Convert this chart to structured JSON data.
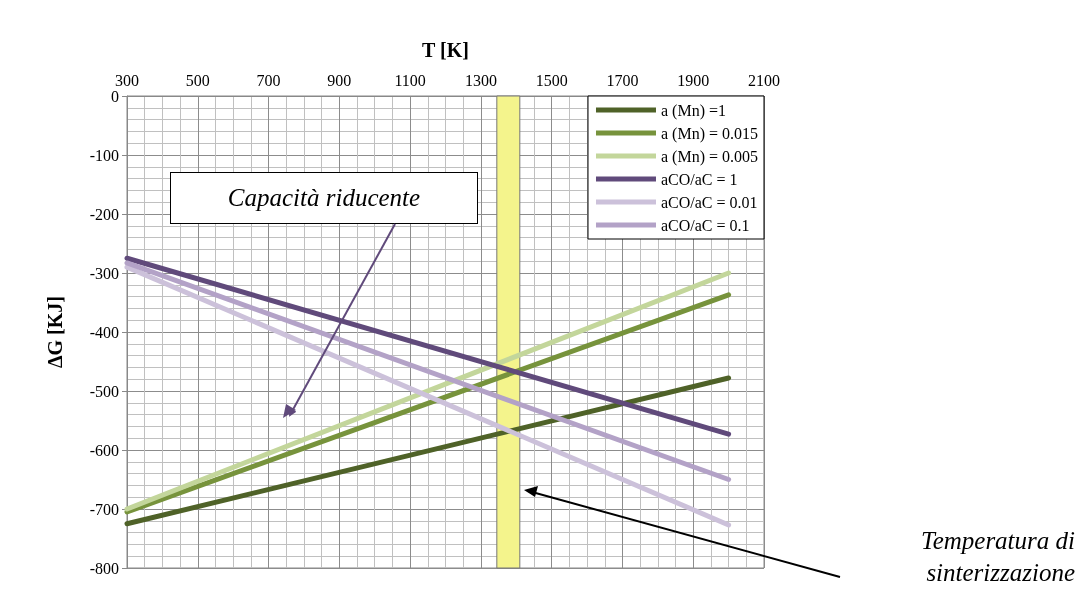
{
  "chart_data": {
    "type": "line",
    "xlabel": "T [K]",
    "ylabel": "ΔG [KJ]",
    "x": [
      300,
      2000
    ],
    "series": [
      {
        "name": "a (Mn) =1",
        "color": "#4f6228",
        "values": [
          -725,
          -478
        ]
      },
      {
        "name": "a (Mn) = 0.015",
        "color": "#77933c",
        "values": [
          -705,
          -337
        ]
      },
      {
        "name": "a (Mn) = 0.005",
        "color": "#c3d69b",
        "values": [
          -700,
          -300
        ]
      },
      {
        "name": "aCO/aC = 1",
        "color": "#604a7b",
        "values": [
          -275,
          -573
        ]
      },
      {
        "name": "aCO/aC = 0.01",
        "color": "#ccc1da",
        "values": [
          -290,
          -727
        ]
      },
      {
        "name": "aCO/aC = 0.1",
        "color": "#b3a2c7",
        "values": [
          -283,
          -650
        ]
      }
    ],
    "xlim": [
      300,
      2100
    ],
    "xticks": [
      300,
      500,
      700,
      900,
      1100,
      1300,
      1500,
      1700,
      1900,
      2100
    ],
    "ylim": [
      -800,
      0
    ],
    "yticks": [
      -800,
      -700,
      -600,
      -500,
      -400,
      -300,
      -200,
      -100,
      0
    ],
    "bands": [
      {
        "axis": "x",
        "from": 1345,
        "to": 1410,
        "color": "#f4f48c"
      }
    ],
    "annotations": [
      "Capacità riducente",
      "Temperatura di sinterizzazione"
    ],
    "grid": true,
    "legend": "top right",
    "marker": "none",
    "line_style": "solid"
  }
}
